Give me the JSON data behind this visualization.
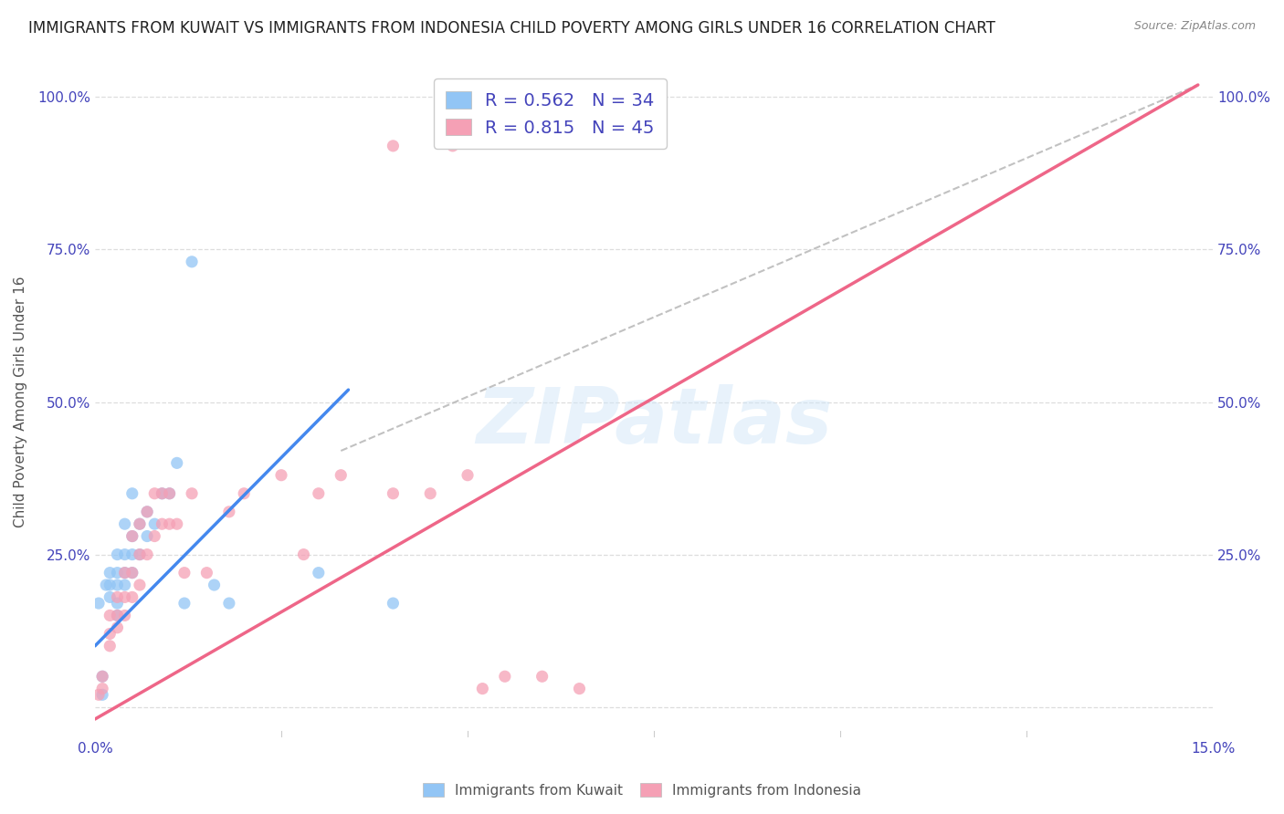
{
  "title": "IMMIGRANTS FROM KUWAIT VS IMMIGRANTS FROM INDONESIA CHILD POVERTY AMONG GIRLS UNDER 16 CORRELATION CHART",
  "source": "Source: ZipAtlas.com",
  "ylabel": "Child Poverty Among Girls Under 16",
  "xlim": [
    0.0,
    0.15
  ],
  "ylim": [
    -0.05,
    1.05
  ],
  "xticks": [
    0.0,
    0.025,
    0.05,
    0.075,
    0.1,
    0.125,
    0.15
  ],
  "xticklabels": [
    "0.0%",
    "",
    "",
    "",
    "",
    "",
    "15.0%"
  ],
  "yticks": [
    0.0,
    0.25,
    0.5,
    0.75,
    1.0
  ],
  "yticklabels_left": [
    "",
    "25.0%",
    "50.0%",
    "75.0%",
    "100.0%"
  ],
  "yticklabels_right": [
    "",
    "25.0%",
    "50.0%",
    "75.0%",
    "100.0%"
  ],
  "watermark": "ZIPatlas",
  "kuwait_color": "#92c5f5",
  "indonesia_color": "#f5a0b5",
  "kuwait_R": 0.562,
  "kuwait_N": 34,
  "indonesia_R": 0.815,
  "indonesia_N": 45,
  "kuwait_scatter_x": [
    0.0005,
    0.001,
    0.001,
    0.0015,
    0.002,
    0.002,
    0.002,
    0.003,
    0.003,
    0.003,
    0.003,
    0.003,
    0.004,
    0.004,
    0.004,
    0.004,
    0.005,
    0.005,
    0.005,
    0.005,
    0.006,
    0.006,
    0.007,
    0.007,
    0.008,
    0.009,
    0.01,
    0.011,
    0.012,
    0.013,
    0.016,
    0.018,
    0.03,
    0.04
  ],
  "kuwait_scatter_y": [
    0.17,
    0.02,
    0.05,
    0.2,
    0.18,
    0.2,
    0.22,
    0.15,
    0.17,
    0.2,
    0.22,
    0.25,
    0.2,
    0.22,
    0.25,
    0.3,
    0.22,
    0.25,
    0.28,
    0.35,
    0.25,
    0.3,
    0.28,
    0.32,
    0.3,
    0.35,
    0.35,
    0.4,
    0.17,
    0.73,
    0.2,
    0.17,
    0.22,
    0.17
  ],
  "indonesia_scatter_x": [
    0.0005,
    0.001,
    0.001,
    0.002,
    0.002,
    0.002,
    0.003,
    0.003,
    0.003,
    0.004,
    0.004,
    0.004,
    0.005,
    0.005,
    0.005,
    0.006,
    0.006,
    0.006,
    0.007,
    0.007,
    0.008,
    0.008,
    0.009,
    0.009,
    0.01,
    0.01,
    0.011,
    0.012,
    0.013,
    0.015,
    0.018,
    0.02,
    0.025,
    0.028,
    0.03,
    0.033,
    0.04,
    0.04,
    0.045,
    0.048,
    0.05,
    0.052,
    0.055,
    0.06,
    0.065
  ],
  "indonesia_scatter_y": [
    0.02,
    0.03,
    0.05,
    0.1,
    0.12,
    0.15,
    0.13,
    0.15,
    0.18,
    0.15,
    0.18,
    0.22,
    0.18,
    0.22,
    0.28,
    0.2,
    0.25,
    0.3,
    0.25,
    0.32,
    0.28,
    0.35,
    0.3,
    0.35,
    0.3,
    0.35,
    0.3,
    0.22,
    0.35,
    0.22,
    0.32,
    0.35,
    0.38,
    0.25,
    0.35,
    0.38,
    0.35,
    0.92,
    0.35,
    0.92,
    0.38,
    0.03,
    0.05,
    0.05,
    0.03
  ],
  "kuwait_line_x": [
    0.0,
    0.034
  ],
  "kuwait_line_y": [
    0.1,
    0.52
  ],
  "indonesia_line_x": [
    0.0,
    0.148
  ],
  "indonesia_line_y": [
    -0.02,
    1.02
  ],
  "dashed_line_x": [
    0.033,
    0.148
  ],
  "dashed_line_y": [
    0.42,
    1.02
  ],
  "background_color": "#ffffff",
  "grid_color": "#dddddd",
  "tick_color": "#4444bb",
  "title_fontsize": 12,
  "ylabel_fontsize": 11,
  "legend_color": "#4444bb"
}
